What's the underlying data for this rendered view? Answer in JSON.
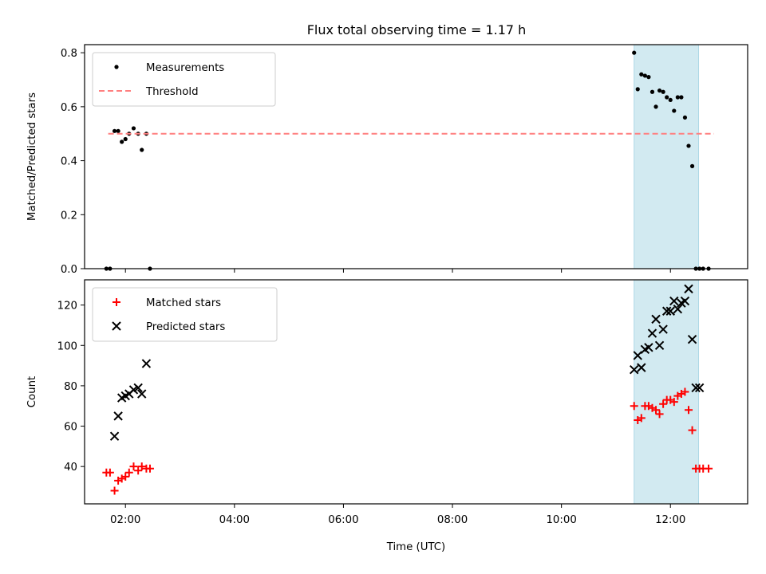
{
  "chart_data": [
    {
      "type": "scatter",
      "title": "Flux total observing time = 1.17 h",
      "xlabel": "",
      "ylabel": "Matched/Predicted stars",
      "xlim": [
        "01:15",
        "13:25"
      ],
      "ylim": [
        0,
        0.83
      ],
      "yticks": [
        0.0,
        0.2,
        0.4,
        0.6,
        0.8
      ],
      "ytick_labels": [
        "0.0",
        "0.2",
        "0.4",
        "0.6",
        "0.8"
      ],
      "grid": false,
      "legend_position": "upper-left",
      "highlight_band": {
        "x": [
          "11:20",
          "12:31"
        ],
        "color": "#add8e6"
      },
      "series": [
        {
          "name": "Measurements",
          "style": "point",
          "color": "#000000",
          "x": [
            "01:39",
            "01:43",
            "01:48",
            "01:52",
            "01:56",
            "02:00",
            "02:04",
            "02:09",
            "02:14",
            "02:18",
            "02:23",
            "02:27",
            "11:20",
            "11:24",
            "11:28",
            "11:32",
            "11:36",
            "11:40",
            "11:44",
            "11:48",
            "11:52",
            "11:56",
            "12:00",
            "12:04",
            "12:08",
            "12:12",
            "12:16",
            "12:20",
            "12:24",
            "12:28",
            "12:32",
            "12:36",
            "12:42"
          ],
          "y": [
            0.0,
            0.0,
            0.51,
            0.51,
            0.47,
            0.48,
            0.5,
            0.52,
            0.5,
            0.44,
            0.5,
            0.0,
            0.8,
            0.665,
            0.72,
            0.715,
            0.71,
            0.655,
            0.6,
            0.66,
            0.655,
            0.635,
            0.625,
            0.585,
            0.635,
            0.635,
            0.56,
            0.455,
            0.38,
            0.0,
            0.0,
            0.0,
            0.0
          ]
        },
        {
          "name": "Threshold",
          "style": "dashed",
          "color": "#ff7f7f",
          "x": [
            "01:41",
            "12:48"
          ],
          "y": [
            0.5,
            0.5
          ]
        }
      ]
    },
    {
      "type": "scatter",
      "title": "",
      "xlabel": "Time (UTC)",
      "ylabel": "Count",
      "xlim": [
        "01:15",
        "13:25"
      ],
      "ylim": [
        21.5,
        132.5
      ],
      "xticks": [
        "02:00",
        "04:00",
        "06:00",
        "08:00",
        "10:00",
        "12:00"
      ],
      "xtick_labels": [
        "02:00",
        "04:00",
        "06:00",
        "08:00",
        "10:00",
        "12:00"
      ],
      "yticks": [
        40,
        60,
        80,
        100,
        120
      ],
      "ytick_labels": [
        "40",
        "60",
        "80",
        "100",
        "120"
      ],
      "grid": false,
      "legend_position": "upper-left",
      "highlight_band": {
        "x": [
          "11:20",
          "12:31"
        ],
        "color": "#add8e6"
      },
      "series": [
        {
          "name": "Matched stars",
          "marker": "plus",
          "color": "#ff0000",
          "x": [
            "01:39",
            "01:43",
            "01:48",
            "01:52",
            "01:56",
            "02:00",
            "02:04",
            "02:09",
            "02:14",
            "02:18",
            "02:23",
            "02:27",
            "11:20",
            "11:24",
            "11:28",
            "11:32",
            "11:36",
            "11:40",
            "11:44",
            "11:48",
            "11:52",
            "11:56",
            "12:00",
            "12:04",
            "12:08",
            "12:12",
            "12:16",
            "12:20",
            "12:24",
            "12:28",
            "12:32",
            "12:36",
            "12:42"
          ],
          "y": [
            37,
            37,
            28,
            33,
            34,
            35,
            37,
            40,
            38,
            40,
            39,
            39,
            70,
            63,
            64,
            70,
            70,
            69,
            68,
            66,
            71,
            73,
            73,
            72,
            75,
            76,
            77,
            68,
            58,
            39,
            39,
            39,
            39
          ]
        },
        {
          "name": "Predicted stars",
          "marker": "x",
          "color": "#000000",
          "x": [
            "01:48",
            "01:52",
            "01:56",
            "02:00",
            "02:04",
            "02:09",
            "02:14",
            "02:18",
            "02:23",
            "11:20",
            "11:24",
            "11:28",
            "11:32",
            "11:36",
            "11:40",
            "11:44",
            "11:48",
            "11:52",
            "11:56",
            "12:00",
            "12:04",
            "12:08",
            "12:12",
            "12:16",
            "12:20",
            "12:24",
            "12:28",
            "12:32"
          ],
          "y": [
            55,
            65,
            74,
            75,
            76,
            78,
            79,
            76,
            91,
            88,
            95,
            89,
            98,
            99,
            106,
            113,
            100,
            108,
            117,
            117,
            122,
            118,
            121,
            122,
            128,
            103,
            79,
            79
          ]
        }
      ]
    }
  ]
}
